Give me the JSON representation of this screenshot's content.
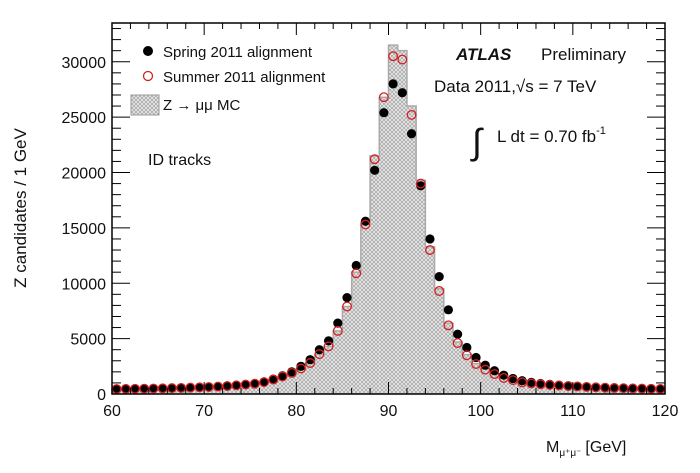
{
  "chart_data": {
    "type": "scatter",
    "xlabel": "M_{μ+μ-} [GeV]",
    "xlabel_main": "M",
    "xlabel_sub": "μ⁺μ⁻",
    "xlabel_unit": "[GeV]",
    "ylabel": "Z candidates / 1 GeV",
    "xlim": [
      60,
      120
    ],
    "ylim": [
      0,
      33500
    ],
    "xticks": [
      "60",
      "70",
      "80",
      "90",
      "100",
      "110",
      "120"
    ],
    "yticks": [
      "0",
      "5000",
      "10000",
      "15000",
      "20000",
      "25000",
      "30000"
    ],
    "bin_width": 1,
    "x": [
      60.5,
      61.5,
      62.5,
      63.5,
      64.5,
      65.5,
      66.5,
      67.5,
      68.5,
      69.5,
      70.5,
      71.5,
      72.5,
      73.5,
      74.5,
      75.5,
      76.5,
      77.5,
      78.5,
      79.5,
      80.5,
      81.5,
      82.5,
      83.5,
      84.5,
      85.5,
      86.5,
      87.5,
      88.5,
      89.5,
      90.5,
      91.5,
      92.5,
      93.5,
      94.5,
      95.5,
      96.5,
      97.5,
      98.5,
      99.5,
      100.5,
      101.5,
      102.5,
      103.5,
      104.5,
      105.5,
      106.5,
      107.5,
      108.5,
      109.5,
      110.5,
      111.5,
      112.5,
      113.5,
      114.5,
      115.5,
      116.5,
      117.5,
      118.5,
      119.5
    ],
    "series": [
      {
        "name": "Spring 2011 alignment",
        "marker": "filled-circle",
        "color": "#000000",
        "values": [
          450,
          460,
          470,
          480,
          495,
          510,
          530,
          550,
          575,
          600,
          630,
          670,
          720,
          780,
          850,
          940,
          1100,
          1350,
          1650,
          2000,
          2500,
          3100,
          4000,
          4800,
          6400,
          8700,
          11600,
          15600,
          20200,
          25400,
          28000,
          27200,
          23500,
          18800,
          14000,
          10600,
          7600,
          5400,
          4200,
          3300,
          2600,
          2100,
          1700,
          1400,
          1200,
          1050,
          950,
          870,
          800,
          740,
          690,
          650,
          610,
          580,
          550,
          530,
          510,
          490,
          475,
          460
        ]
      },
      {
        "name": "Summer 2011 alignment",
        "marker": "open-circle",
        "color": "#d62020",
        "values": [
          450,
          460,
          470,
          480,
          495,
          510,
          530,
          550,
          575,
          600,
          630,
          670,
          720,
          780,
          850,
          930,
          1070,
          1300,
          1580,
          1900,
          2300,
          2800,
          3600,
          4300,
          5700,
          7900,
          10900,
          15300,
          21200,
          26800,
          30500,
          30200,
          25200,
          19000,
          13000,
          9300,
          6200,
          4600,
          3500,
          2700,
          2200,
          1800,
          1450,
          1250,
          1050,
          950,
          880,
          820,
          770,
          720,
          680,
          640,
          600,
          570,
          545,
          525,
          505,
          485,
          470,
          455
        ]
      },
      {
        "name": "Z → μμ MC",
        "marker": "hatched-histogram",
        "color": "#bdbdbd",
        "values": [
          440,
          450,
          460,
          470,
          485,
          500,
          520,
          540,
          565,
          590,
          620,
          660,
          710,
          770,
          840,
          920,
          1060,
          1280,
          1560,
          1880,
          2280,
          2780,
          3580,
          4300,
          5700,
          7900,
          11000,
          15500,
          21500,
          26800,
          31500,
          31000,
          26000,
          19300,
          13300,
          9500,
          6400,
          4700,
          3550,
          2750,
          2250,
          1850,
          1500,
          1280,
          1080,
          970,
          890,
          830,
          775,
          725,
          685,
          645,
          605,
          575,
          550,
          528,
          508,
          488,
          472,
          458
        ]
      }
    ],
    "legend": "top-left",
    "annotations": {
      "experiment": "ATLAS",
      "status": "Preliminary",
      "dataset": "Data 2011,",
      "sqrt_s": "√s = 7 TeV",
      "lumi_integral": "∫",
      "lumi": "L dt = 0.70 fb",
      "lumi_exp": "-1",
      "region": "ID tracks"
    }
  }
}
